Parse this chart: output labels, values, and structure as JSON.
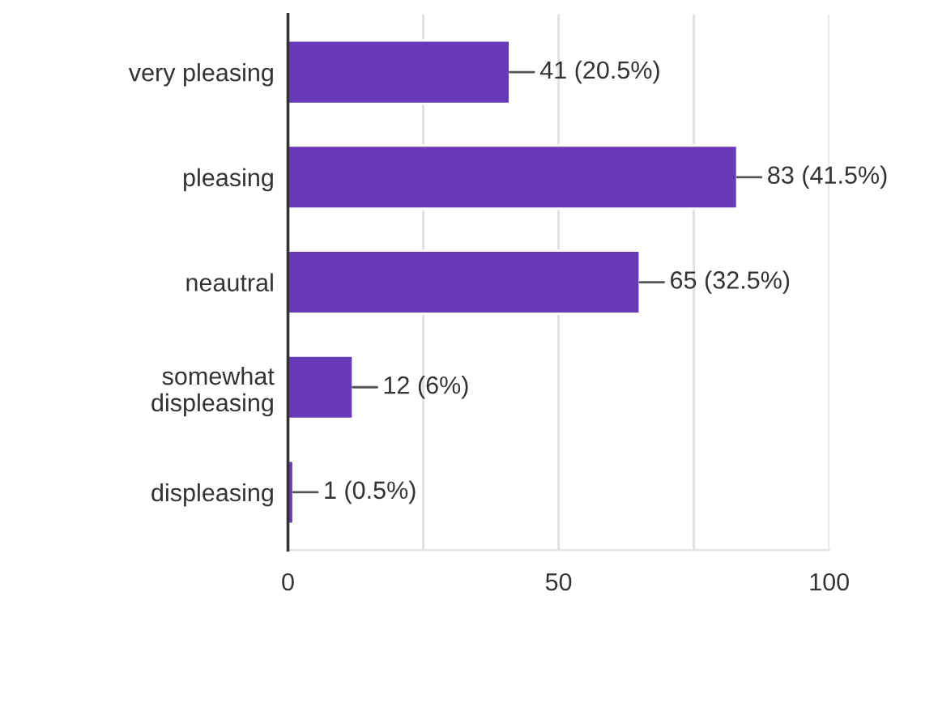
{
  "chart_data": {
    "type": "bar",
    "orientation": "horizontal",
    "categories": [
      "very pleasing",
      "pleasing",
      "neautral",
      "somewhat\ndispleasing",
      "displeasing"
    ],
    "values": [
      41,
      83,
      65,
      12,
      1
    ],
    "value_labels": [
      "41 (20.5%)",
      "83 (41.5%)",
      "65 (32.5%)",
      "12 (6%)",
      "1 (0.5%)"
    ],
    "color": "#673ab7",
    "xlim": [
      0,
      100
    ],
    "xticks": [
      0,
      {
        "value": 25,
        "label": null
      },
      50,
      {
        "value": 75,
        "label": null
      },
      100
    ],
    "grid": "x"
  }
}
